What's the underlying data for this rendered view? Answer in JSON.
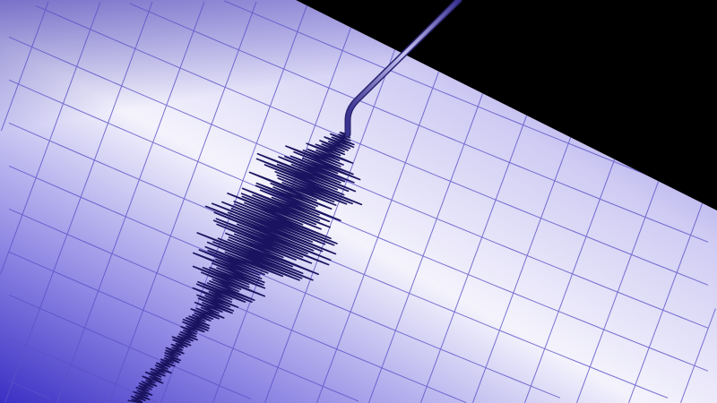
{
  "scene": {
    "subject": "seismograph",
    "colors": {
      "background": "#000000",
      "paper_light": "#f4f3fc",
      "paper_mid": "#a9a3ea",
      "paper_dark": "#3a2fc4",
      "grid": "#5b52c8",
      "trace": "#1a1460",
      "needle": "#6a62c0"
    }
  }
}
